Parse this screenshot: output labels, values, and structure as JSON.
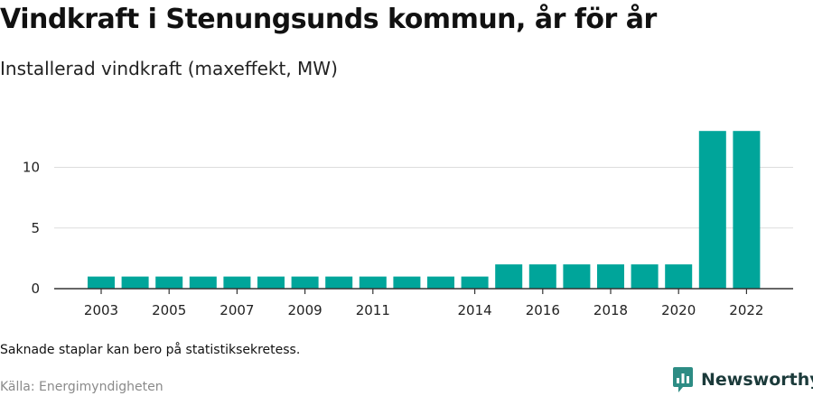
{
  "header": {
    "title": "Vindkraft i Stenungsunds kommun, år för år",
    "subtitle": "Installerad vindkraft (maxeffekt, MW)"
  },
  "footer": {
    "note": "Saknade staplar kan bero på statistiksekretess.",
    "source": "Källa: Energimyndigheten",
    "brand": "Newsworthy"
  },
  "colors": {
    "bar": "#00a59a",
    "grid": "#dddddd",
    "axis": "#333333",
    "brand_icon": "#2d8c84"
  },
  "chart_data": {
    "type": "bar",
    "title": "Vindkraft i Stenungsunds kommun, år för år",
    "subtitle": "Installerad vindkraft (maxeffekt, MW)",
    "categories": [
      2003,
      2004,
      2005,
      2006,
      2007,
      2008,
      2009,
      2010,
      2011,
      2012,
      2013,
      2014,
      2015,
      2016,
      2017,
      2018,
      2019,
      2020,
      2021,
      2022
    ],
    "values": [
      1,
      1,
      1,
      1,
      1,
      1,
      1,
      1,
      1,
      1,
      1,
      1,
      2,
      2,
      2,
      2,
      2,
      2,
      13,
      13
    ],
    "x_tick_labels": [
      "2003",
      "2005",
      "2007",
      "2009",
      "2011",
      "2014",
      "2016",
      "2018",
      "2020",
      "2022"
    ],
    "y_ticks": [
      0,
      5,
      10
    ],
    "ylim": [
      0,
      14.5
    ],
    "grid": true,
    "xlabel": "",
    "ylabel": ""
  }
}
